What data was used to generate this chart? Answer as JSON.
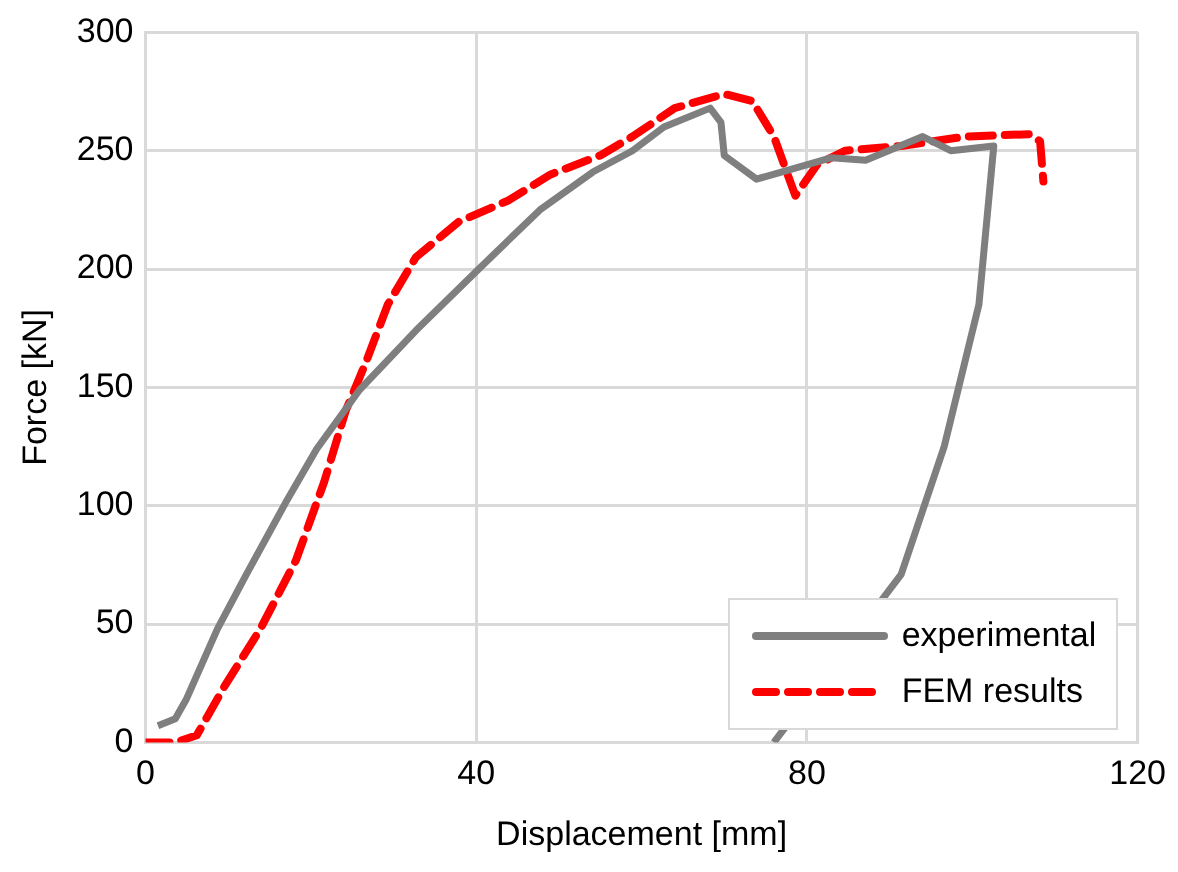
{
  "chart_data": {
    "type": "line",
    "xlabel": "Displacement [mm]",
    "ylabel": "Force [kN]",
    "xlim": [
      0,
      120
    ],
    "xticks": [
      0,
      40,
      80,
      120
    ],
    "ylim": [
      0,
      300
    ],
    "yticks": [
      0,
      50,
      100,
      150,
      200,
      250,
      300
    ],
    "grid": true,
    "legend": "bottom right",
    "marker": "none",
    "series": [
      {
        "name": "experimental",
        "color": "#7f7f7f",
        "line_style": "solid",
        "x": [
          1.5,
          3.6,
          4.9,
          8.7,
          12.2,
          16.9,
          20.7,
          25.9,
          32.7,
          40,
          47.7,
          54.1,
          58.9,
          62.7,
          68.3,
          69.6,
          70,
          73.9,
          76.9,
          82.9,
          87.1,
          94,
          97.4,
          102.6,
          100.8,
          96.6,
          91.4,
          84.6,
          76
        ],
        "values": [
          7,
          10,
          18,
          48,
          71,
          101,
          124,
          149,
          174,
          199,
          225,
          241,
          250,
          260,
          268,
          262,
          248,
          238,
          241,
          247,
          246,
          256,
          250,
          252,
          185,
          125,
          71,
          null,
          0
        ]
      },
      {
        "name": "FEM results",
        "color": "#ff0000",
        "line_style": "dashed",
        "x": [
          0,
          3.6,
          6.2,
          9.6,
          13.9,
          18.2,
          21.6,
          24.2,
          26.7,
          29.3,
          32.7,
          37.9,
          43.9,
          49,
          55,
          58.9,
          64,
          70,
          73.4,
          76,
          78.6,
          81.2,
          84.6,
          91.4,
          99.2,
          106.9,
          108.2,
          108.6
        ],
        "values": [
          0,
          0,
          3,
          24,
          48,
          77,
          110,
          140,
          161,
          185,
          205,
          220,
          229,
          240,
          248,
          256,
          268,
          274,
          271,
          256,
          231,
          244,
          250,
          252,
          256,
          257,
          254,
          237
        ]
      }
    ]
  }
}
